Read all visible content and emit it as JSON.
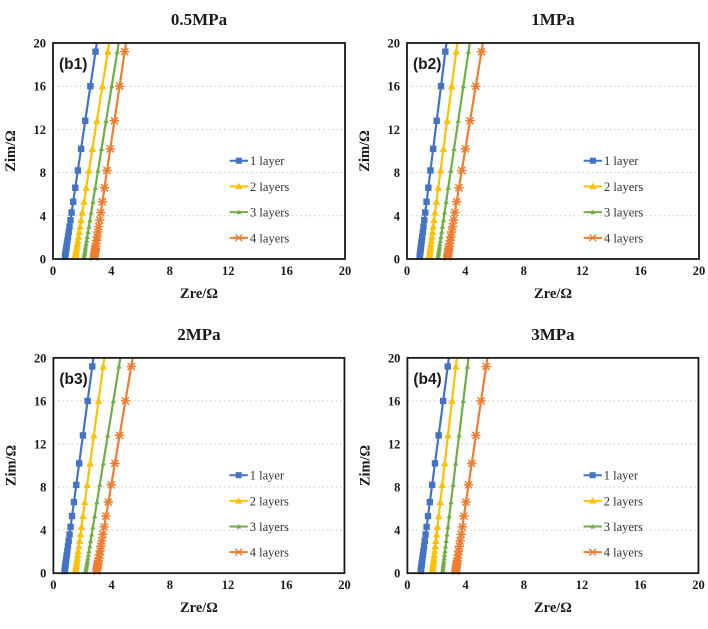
{
  "figure": {
    "description_title_row1": [
      "0.5MPa",
      "1MPa"
    ],
    "description_title_row2": [
      "2MPa",
      "3MPa"
    ]
  },
  "chart_meta": {
    "type": "line",
    "xlabel": "Zre/Ω",
    "ylabel": "Zim/Ω",
    "xlim": [
      0,
      20
    ],
    "ylim": [
      0,
      20
    ],
    "x_ticks": [
      0,
      4,
      8,
      12,
      16,
      20
    ],
    "y_ticks": [
      0,
      4,
      8,
      12,
      16,
      20
    ],
    "grid_y": [
      4,
      8,
      12,
      16
    ],
    "grid_on": true,
    "legend_position": "center-right-inside",
    "legend_labels": [
      "1 layer",
      "2 layers",
      "3 layers",
      "4 layers"
    ],
    "colors": {
      "blue": "#4472C4",
      "gold": "#FFC000",
      "green": "#70AD47",
      "orange": "#ED7D31"
    },
    "axis_color": "#1a1a1a",
    "grid_color": "#c8c8c8",
    "marker_zim": [
      0.2,
      0.35,
      0.5,
      0.65,
      0.8,
      0.95,
      1.15,
      1.4,
      1.7,
      2.05,
      2.5,
      3.0,
      3.6,
      4.3,
      5.3,
      6.6,
      8.2,
      10.2,
      12.8,
      16.0,
      19.2
    ]
  },
  "chart_data": [
    {
      "panel_label": "(b1)",
      "title": "0.5MPa",
      "series": [
        {
          "name": "1 layer",
          "color": "#4472C4",
          "marker": "square",
          "x_at_zim0": 0.8,
          "x_at_zim20": 3.0
        },
        {
          "name": "2 layers",
          "color": "#FFC000",
          "marker": "triangle",
          "x_at_zim0": 1.5,
          "x_at_zim20": 3.85
        },
        {
          "name": "3 layers",
          "color": "#70AD47",
          "marker": "triangle_small",
          "x_at_zim0": 2.1,
          "x_at_zim20": 4.5
        },
        {
          "name": "4 layers",
          "color": "#ED7D31",
          "marker": "asterisk",
          "x_at_zim0": 2.8,
          "x_at_zim20": 5.0
        }
      ]
    },
    {
      "panel_label": "(b2)",
      "title": "1MPa",
      "series": [
        {
          "name": "1 layer",
          "color": "#4472C4",
          "marker": "square",
          "x_at_zim0": 0.85,
          "x_at_zim20": 2.7
        },
        {
          "name": "2 layers",
          "color": "#FFC000",
          "marker": "triangle",
          "x_at_zim0": 1.5,
          "x_at_zim20": 3.45
        },
        {
          "name": "3 layers",
          "color": "#70AD47",
          "marker": "triangle_small",
          "x_at_zim0": 2.1,
          "x_at_zim20": 4.3
        },
        {
          "name": "4 layers",
          "color": "#ED7D31",
          "marker": "asterisk",
          "x_at_zim0": 2.75,
          "x_at_zim20": 5.2
        }
      ]
    },
    {
      "panel_label": "(b3)",
      "title": "2MPa",
      "series": [
        {
          "name": "1 layer",
          "color": "#4472C4",
          "marker": "square",
          "x_at_zim0": 0.75,
          "x_at_zim20": 2.75
        },
        {
          "name": "2 layers",
          "color": "#FFC000",
          "marker": "triangle",
          "x_at_zim0": 1.5,
          "x_at_zim20": 3.5
        },
        {
          "name": "3 layers",
          "color": "#70AD47",
          "marker": "triangle_small",
          "x_at_zim0": 2.2,
          "x_at_zim20": 4.6
        },
        {
          "name": "4 layers",
          "color": "#ED7D31",
          "marker": "asterisk",
          "x_at_zim0": 2.95,
          "x_at_zim20": 5.45
        }
      ]
    },
    {
      "panel_label": "(b4)",
      "title": "3MPa",
      "series": [
        {
          "name": "1 layer",
          "color": "#4472C4",
          "marker": "square",
          "x_at_zim0": 0.9,
          "x_at_zim20": 2.85
        },
        {
          "name": "2 layers",
          "color": "#FFC000",
          "marker": "triangle",
          "x_at_zim0": 1.7,
          "x_at_zim20": 3.4
        },
        {
          "name": "3 layers",
          "color": "#70AD47",
          "marker": "triangle_small",
          "x_at_zim0": 2.4,
          "x_at_zim20": 4.2
        },
        {
          "name": "4 layers",
          "color": "#ED7D31",
          "marker": "asterisk",
          "x_at_zim0": 3.3,
          "x_at_zim20": 5.5
        }
      ]
    }
  ]
}
